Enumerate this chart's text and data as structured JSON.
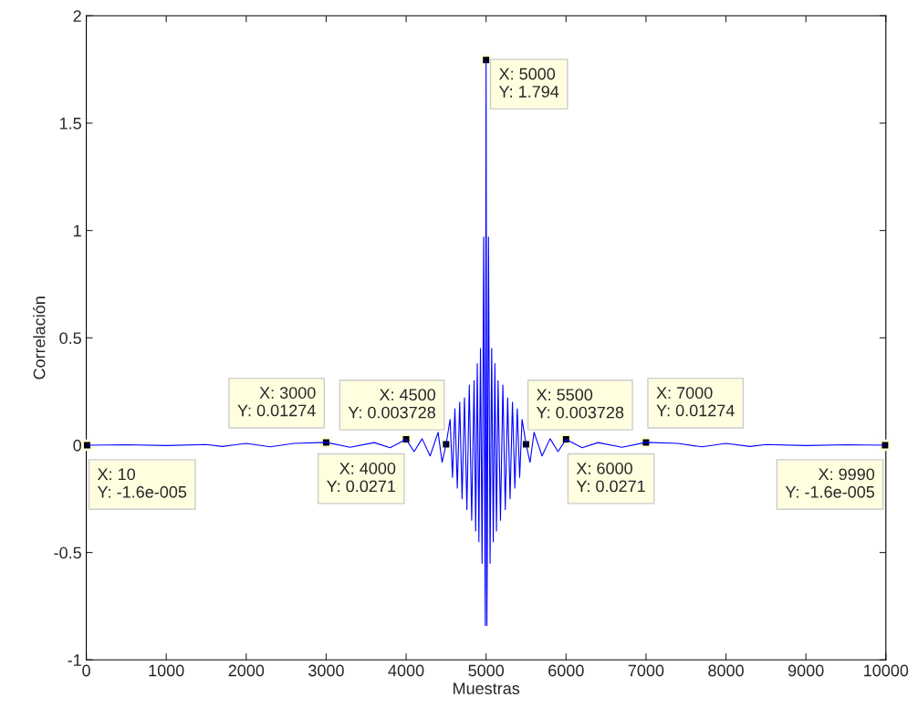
{
  "chart_data": {
    "type": "line",
    "xlabel": "Muestras",
    "ylabel": "Correlación",
    "xlim": [
      0,
      10000
    ],
    "xticks": [
      0,
      1000,
      2000,
      3000,
      4000,
      5000,
      6000,
      7000,
      8000,
      9000,
      10000
    ],
    "ylim": [
      -1,
      2
    ],
    "yticks": [
      -1,
      -0.5,
      0,
      0.5,
      1,
      1.5,
      2
    ],
    "grid": false,
    "marker": "none",
    "line_style": "solid",
    "series": [
      {
        "color": "#0000ff",
        "x": [
          10,
          500,
          1000,
          1500,
          1700,
          2000,
          2300,
          2600,
          3000,
          3300,
          3600,
          3800,
          4000,
          4100,
          4200,
          4300,
          4400,
          4450,
          4500,
          4550,
          4580,
          4610,
          4640,
          4670,
          4700,
          4730,
          4760,
          4790,
          4820,
          4850,
          4870,
          4890,
          4910,
          4930,
          4950,
          4970,
          4985,
          4990,
          5000,
          5010,
          5015,
          5030,
          5050,
          5070,
          5090,
          5110,
          5130,
          5150,
          5180,
          5210,
          5240,
          5270,
          5300,
          5330,
          5360,
          5390,
          5420,
          5450,
          5500,
          5550,
          5600,
          5700,
          5800,
          5900,
          6000,
          6200,
          6400,
          6700,
          7000,
          7400,
          7700,
          8000,
          8300,
          8500,
          9000,
          9500,
          9990
        ],
        "values": [
          0,
          0.002,
          -0.002,
          0.003,
          -0.006,
          0.008,
          -0.008,
          0.008,
          0.013,
          -0.01,
          0.012,
          -0.012,
          0.027,
          -0.03,
          0.03,
          -0.05,
          0.06,
          -0.08,
          0.004,
          0.12,
          -0.15,
          0.17,
          -0.2,
          0.2,
          -0.25,
          0.22,
          -0.3,
          0.28,
          -0.35,
          0.3,
          -0.4,
          0.38,
          -0.45,
          0.45,
          -0.55,
          0.97,
          -0.5,
          -0.84,
          1.794,
          -0.84,
          -0.5,
          0.97,
          -0.55,
          0.45,
          -0.45,
          0.38,
          -0.4,
          0.3,
          -0.35,
          0.28,
          -0.3,
          0.22,
          -0.25,
          0.2,
          -0.2,
          0.17,
          -0.15,
          0.12,
          0.004,
          -0.08,
          0.06,
          -0.05,
          0.03,
          -0.03,
          0.027,
          -0.012,
          0.012,
          -0.01,
          0.013,
          0.008,
          -0.008,
          0.008,
          -0.006,
          0.003,
          -0.002,
          0.002,
          0
        ]
      }
    ],
    "annotations": [
      {
        "text": "X: 10\nY: -1.6e-005",
        "x": 10,
        "y": -1.6e-05
      },
      {
        "text": "X: 3000\nY: 0.01274",
        "x": 3000,
        "y": 0.01274
      },
      {
        "text": "X: 4000\nY: 0.0271",
        "x": 4000,
        "y": 0.0271
      },
      {
        "text": "X: 4500\nY: 0.003728",
        "x": 4500,
        "y": 0.003728
      },
      {
        "text": "X: 5000\nY: 1.794",
        "x": 5000,
        "y": 1.794
      },
      {
        "text": "X: 5500\nY: 0.003728",
        "x": 5500,
        "y": 0.003728
      },
      {
        "text": "X: 6000\nY: 0.0271",
        "x": 6000,
        "y": 0.0271
      },
      {
        "text": "X: 7000\nY: 0.01274",
        "x": 7000,
        "y": 0.01274
      },
      {
        "text": "X: 9990\nY: -1.6e-005",
        "x": 9990,
        "y": -1.6e-05
      }
    ]
  }
}
